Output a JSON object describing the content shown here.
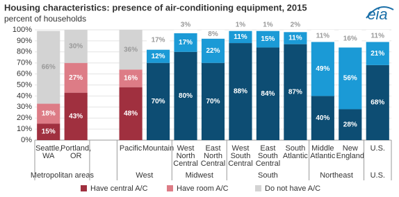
{
  "chart_data": {
    "type": "stacked-bar",
    "title": "Housing characteristics: presence of air-conditioning equipment, 2015",
    "y_label": "percent of households",
    "logo": "eia",
    "categories": [
      "Seattle, WA",
      "Portland, OR",
      null,
      "Pacific",
      "Mountain",
      "West North Central",
      "East North Central",
      "West South Central",
      "East South Central",
      "South Atlantic",
      "Middle Atlantic",
      "New England",
      "U.S."
    ],
    "groups": [
      {
        "name": "Metropolitan areas",
        "size": 2
      },
      {
        "name": null,
        "size": 1
      },
      {
        "name": "West",
        "size": 2
      },
      {
        "name": "Midwest",
        "size": 2
      },
      {
        "name": "South",
        "size": 3
      },
      {
        "name": "Northeast",
        "size": 2
      },
      {
        "name": "U.S.",
        "size": 1
      }
    ],
    "series": [
      {
        "name": "Have central A/C",
        "color": "#a0303f",
        "label_color": "#ffffff",
        "colors": [
          "#a0303f",
          "#a0303f",
          null,
          "#a0303f",
          "#0d4d73",
          "#0d4d73",
          "#0d4d73",
          "#0d4d73",
          "#0d4d73",
          "#0d4d73",
          "#0d4d73",
          "#0d4d73",
          "#0d4d73"
        ],
        "values": [
          15,
          43,
          null,
          48,
          70,
          80,
          70,
          88,
          84,
          87,
          40,
          28,
          68
        ],
        "value_labels": [
          "15%",
          "43%",
          null,
          "48%",
          "70%",
          "80%",
          "70%",
          "88%",
          "84%",
          "87%",
          "40%",
          "28%",
          "68%"
        ]
      },
      {
        "name": "Have room A/C",
        "color": "#dd7c86",
        "label_color": "#ffffff",
        "colors": [
          "#dd7c86",
          "#dd7c86",
          null,
          "#dd7c86",
          "#1b9ad6",
          "#1b9ad6",
          "#1b9ad6",
          "#1b9ad6",
          "#1b9ad6",
          "#1b9ad6",
          "#1b9ad6",
          "#1b9ad6",
          "#1b9ad6"
        ],
        "values": [
          18,
          27,
          null,
          16,
          12,
          17,
          22,
          11,
          15,
          11,
          49,
          56,
          21
        ],
        "value_labels": [
          "18%",
          "27%",
          null,
          "16%",
          "12%",
          "17%",
          "22%",
          "11%",
          "15%",
          "11%",
          "49%",
          "56%",
          "21%"
        ]
      },
      {
        "name": "Do not have A/C",
        "color": "#d3d3d3",
        "label_color": "#999999",
        "colors": [
          "#d3d3d3",
          "#d3d3d3",
          null,
          "#d3d3d3",
          "#ffffff",
          "#ffffff",
          "#ffffff",
          "#ffffff",
          "#ffffff",
          "#ffffff",
          "#ffffff",
          "#ffffff",
          "#ffffff"
        ],
        "values": [
          66,
          30,
          null,
          36,
          17,
          3,
          8,
          1,
          1,
          2,
          11,
          16,
          11
        ],
        "value_labels": [
          "66%",
          "30%",
          null,
          "36%",
          "17%",
          "3%",
          "8%",
          "1%",
          "1%",
          "2%",
          "11%",
          "16%",
          "11%"
        ]
      }
    ],
    "ylim": [
      0,
      100
    ],
    "yticks": [
      {
        "value": 0,
        "label": "0%"
      },
      {
        "value": 10,
        "label": "10%"
      },
      {
        "value": 20,
        "label": "20%"
      },
      {
        "value": 30,
        "label": "30%"
      },
      {
        "value": 40,
        "label": "40%"
      },
      {
        "value": 50,
        "label": "50%"
      },
      {
        "value": 60,
        "label": "60%"
      },
      {
        "value": 70,
        "label": "70%"
      },
      {
        "value": 80,
        "label": "80%"
      },
      {
        "value": 90,
        "label": "90%"
      },
      {
        "value": 100,
        "label": "100%"
      }
    ],
    "grid": true
  }
}
